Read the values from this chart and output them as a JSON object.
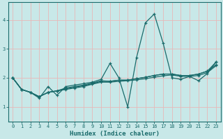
{
  "title": "",
  "xlabel": "Humidex (Indice chaleur)",
  "bg_color": "#c8e8e8",
  "line_color": "#1a6b6b",
  "grid_color_v": "#e8b8b8",
  "grid_color_h": "#e8b8b8",
  "xlim": [
    -0.5,
    23.5
  ],
  "ylim": [
    0.5,
    4.6
  ],
  "yticks": [
    1,
    2,
    3,
    4
  ],
  "xticks": [
    0,
    1,
    2,
    3,
    4,
    5,
    6,
    7,
    8,
    9,
    10,
    11,
    12,
    13,
    14,
    15,
    16,
    17,
    18,
    19,
    20,
    21,
    22,
    23
  ],
  "series": [
    [
      2.0,
      1.6,
      1.5,
      1.3,
      1.7,
      1.4,
      1.7,
      1.75,
      1.8,
      1.85,
      1.95,
      2.5,
      2.0,
      1.0,
      2.7,
      3.9,
      4.2,
      3.2,
      2.0,
      1.95,
      2.05,
      1.9,
      2.15,
      2.55
    ],
    [
      2.0,
      1.6,
      1.5,
      1.35,
      1.5,
      1.55,
      1.6,
      1.65,
      1.7,
      1.78,
      1.85,
      1.85,
      1.88,
      1.9,
      1.93,
      1.97,
      2.02,
      2.07,
      2.1,
      2.05,
      2.05,
      2.08,
      2.18,
      2.42
    ],
    [
      2.0,
      1.6,
      1.5,
      1.35,
      1.5,
      1.55,
      1.62,
      1.68,
      1.73,
      1.8,
      1.88,
      1.88,
      1.92,
      1.92,
      1.97,
      2.02,
      2.08,
      2.13,
      2.13,
      2.08,
      2.08,
      2.13,
      2.23,
      2.45
    ],
    [
      2.0,
      1.6,
      1.5,
      1.35,
      1.5,
      1.55,
      1.65,
      1.7,
      1.75,
      1.82,
      1.9,
      1.88,
      1.92,
      1.92,
      1.97,
      2.02,
      2.08,
      2.13,
      2.13,
      2.08,
      2.08,
      2.13,
      2.23,
      2.55
    ]
  ]
}
